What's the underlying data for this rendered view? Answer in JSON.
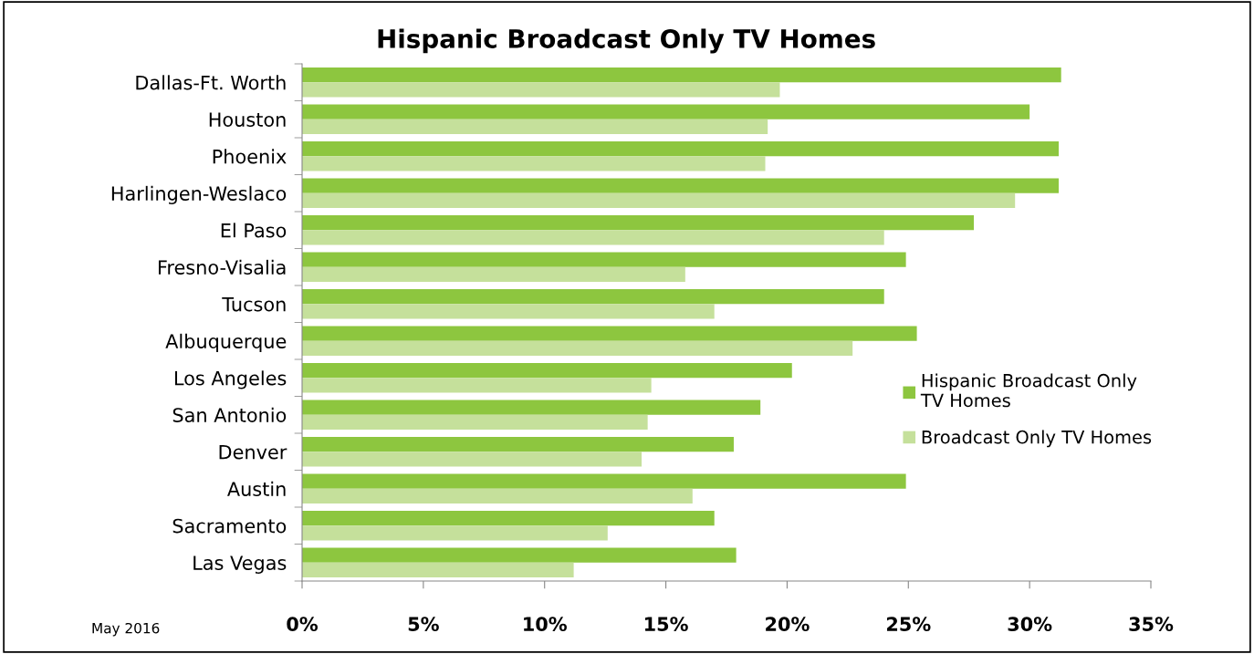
{
  "chart_data": {
    "type": "bar",
    "orientation": "horizontal",
    "title": "Hispanic Broadcast Only TV Homes",
    "categories": [
      "Dallas-Ft. Worth",
      "Houston",
      "Phoenix",
      "Harlingen-Weslaco",
      "El Paso",
      "Fresno-Visalia",
      "Tucson",
      "Albuquerque",
      "Los Angeles",
      "San Antonio",
      "Denver",
      "Austin",
      "Sacramento",
      "Las Vegas"
    ],
    "series": [
      {
        "name": "Hispanic Broadcast Only\nTV Homes",
        "color": "#8dc63f",
        "values": [
          31.3,
          30.0,
          31.2,
          31.2,
          27.7,
          24.9,
          24.0,
          25.35,
          20.2,
          18.9,
          17.8,
          24.9,
          17.0,
          17.9
        ]
      },
      {
        "name": "Broadcast Only TV Homes",
        "color": "#c5e09b",
        "values": [
          19.7,
          19.2,
          19.1,
          29.4,
          24.0,
          15.8,
          17.0,
          22.7,
          14.4,
          14.25,
          14.0,
          16.1,
          12.6,
          11.2
        ]
      }
    ],
    "xlim": [
      0,
      35
    ],
    "xticks": [
      {
        "value": 0,
        "label": "0%"
      },
      {
        "value": 5,
        "label": "5%"
      },
      {
        "value": 10,
        "label": "10%"
      },
      {
        "value": 15,
        "label": "15%"
      },
      {
        "value": 20,
        "label": "20%"
      },
      {
        "value": 25,
        "label": "25%"
      },
      {
        "value": 30,
        "label": "30%"
      },
      {
        "value": 35,
        "label": "35%"
      }
    ],
    "legend": "right",
    "grid": false,
    "annotations": [
      "May 2016"
    ]
  }
}
